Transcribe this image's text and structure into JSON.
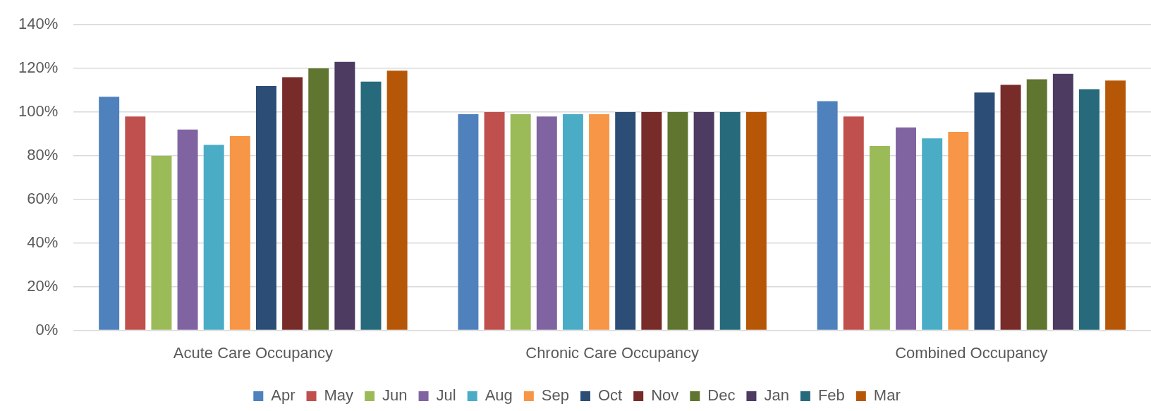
{
  "chart_data": {
    "type": "bar",
    "categories": [
      "Acute Care Occupancy",
      "Chronic Care Occupancy",
      "Combined Occupancy"
    ],
    "series": [
      {
        "name": "Apr",
        "color": "#4f81bd",
        "values": [
          107,
          99,
          105
        ]
      },
      {
        "name": "May",
        "color": "#c0504d",
        "values": [
          98,
          100,
          98
        ]
      },
      {
        "name": "Jun",
        "color": "#9bbb59",
        "values": [
          80,
          99,
          84.5
        ]
      },
      {
        "name": "Jul",
        "color": "#8064a2",
        "values": [
          92,
          98,
          93
        ]
      },
      {
        "name": "Aug",
        "color": "#4bacc6",
        "values": [
          85,
          99,
          88
        ]
      },
      {
        "name": "Sep",
        "color": "#f79646",
        "values": [
          89,
          99,
          91
        ]
      },
      {
        "name": "Oct",
        "color": "#2c4d75",
        "values": [
          112,
          100,
          109
        ]
      },
      {
        "name": "Nov",
        "color": "#772c2a",
        "values": [
          116,
          100,
          112.5
        ]
      },
      {
        "name": "Dec",
        "color": "#5f7530",
        "values": [
          120,
          100,
          115
        ]
      },
      {
        "name": "Jan",
        "color": "#4d3b62",
        "values": [
          123,
          100,
          117.5
        ]
      },
      {
        "name": "Feb",
        "color": "#276a7c",
        "values": [
          114,
          100,
          110.5
        ]
      },
      {
        "name": "Mar",
        "color": "#b65708",
        "values": [
          119,
          100,
          114.5
        ]
      }
    ],
    "ylim": [
      0,
      140
    ],
    "yticks": [
      {
        "value": 0,
        "label": "0%"
      },
      {
        "value": 20,
        "label": "20%"
      },
      {
        "value": 40,
        "label": "40%"
      },
      {
        "value": 60,
        "label": "60%"
      },
      {
        "value": 80,
        "label": "80%"
      },
      {
        "value": 100,
        "label": "100%"
      },
      {
        "value": 120,
        "label": "120%"
      },
      {
        "value": 140,
        "label": "140%"
      }
    ],
    "grid": "y",
    "legend": "bottom"
  }
}
